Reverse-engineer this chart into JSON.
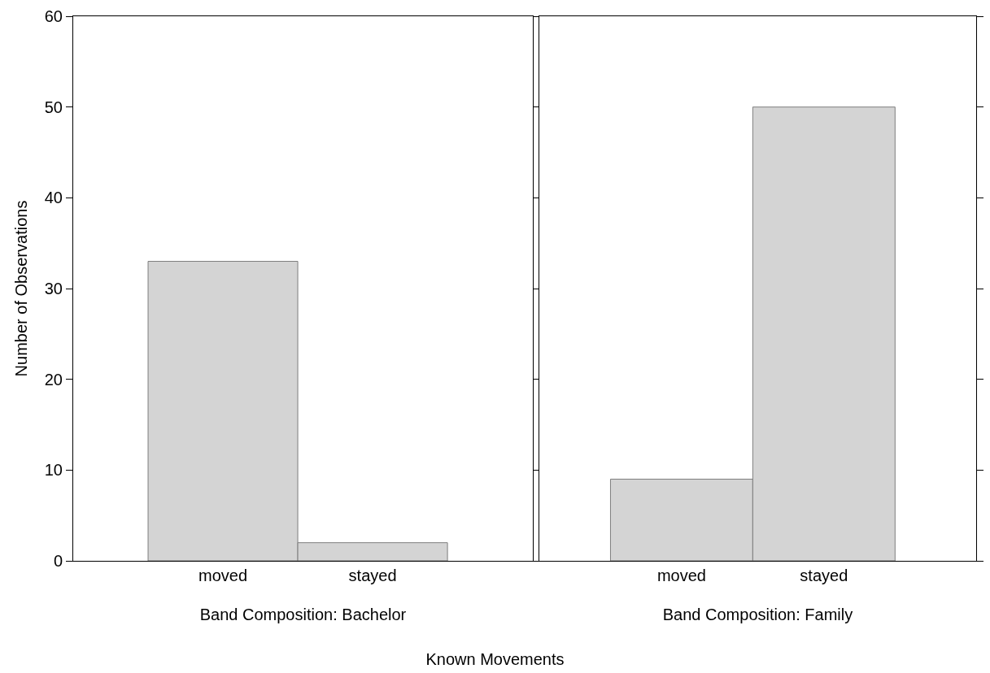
{
  "chart_data": [
    {
      "type": "bar",
      "categories": [
        "moved",
        "stayed"
      ],
      "values": [
        33,
        2
      ],
      "color": "#d4d4d4",
      "xlabel": "Band Composition: Bachelor",
      "ylabel": "Number of Observations",
      "ylim": [
        0,
        60
      ],
      "yticks": [
        0,
        10,
        20,
        30,
        40,
        50,
        60
      ],
      "grid": false,
      "annotations": [
        "Known Movements"
      ]
    },
    {
      "type": "bar",
      "categories": [
        "moved",
        "stayed"
      ],
      "values": [
        9,
        50
      ],
      "color": "#d4d4d4",
      "xlabel": "Band Composition: Family",
      "ylim": [
        0,
        60
      ],
      "yticks": [
        0,
        10,
        20,
        30,
        40,
        50,
        60
      ],
      "grid": false,
      "tick_labels": "x"
    }
  ]
}
